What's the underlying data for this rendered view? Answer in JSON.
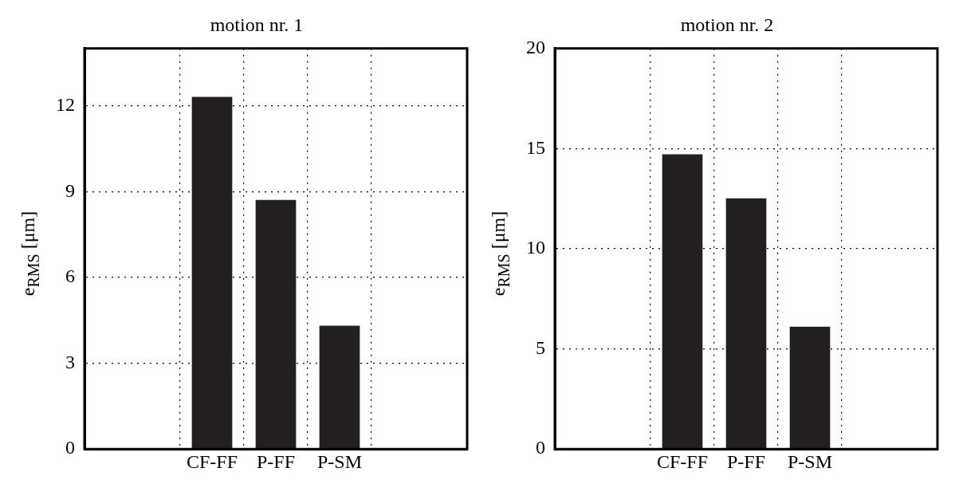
{
  "chart_data": [
    {
      "type": "bar",
      "title": "motion nr. 1",
      "ylabel": "e$_{RMS}$ [μm]",
      "categories": [
        "CF-FF",
        "P-FF",
        "P-SM"
      ],
      "values": [
        12.3,
        8.7,
        4.3
      ],
      "color": "#231f20",
      "ylim": [
        0,
        14
      ],
      "yticks": [
        0,
        3,
        6,
        9,
        12
      ],
      "grid": true
    },
    {
      "type": "bar",
      "title": "motion nr. 2",
      "ylabel": "e$_{RMS}$ [μm]",
      "categories": [
        "CF-FF",
        "P-FF",
        "P-SM"
      ],
      "values": [
        14.7,
        12.5,
        6.1
      ],
      "color": "#231f20",
      "ylim": [
        0,
        20
      ],
      "yticks": [
        0,
        5,
        10,
        15,
        20
      ],
      "grid": true
    }
  ]
}
